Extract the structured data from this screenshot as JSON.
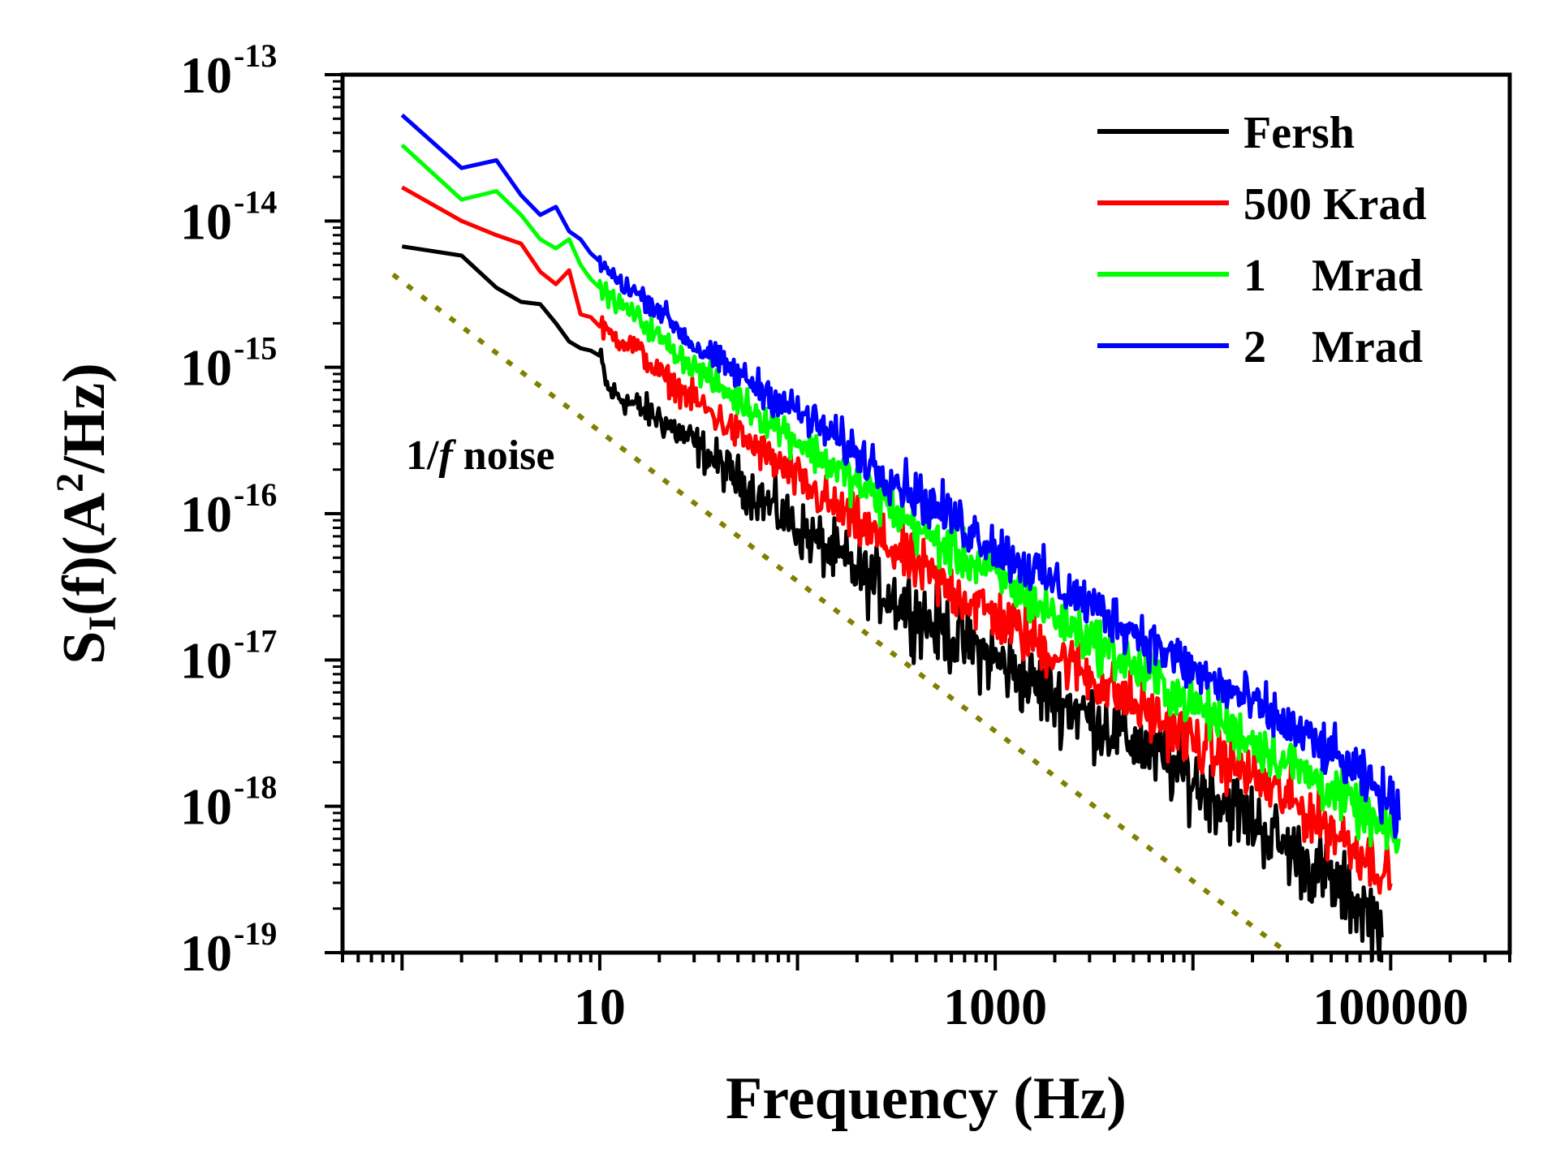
{
  "chart_data": {
    "type": "line",
    "title": "",
    "xlabel": "Frequency (Hz)",
    "ylabel": {
      "base": "S",
      "subscript": "I",
      "rest": "(f)(A",
      "superscript": "2",
      "end": "/Hz)"
    },
    "xscale": "log",
    "yscale": "log",
    "xlim": [
      0.5,
      400000
    ],
    "ylim": [
      1e-19,
      1e-13
    ],
    "x_ticks": [
      {
        "value": 10,
        "label": "10"
      },
      {
        "value": 1000,
        "label": "1000"
      },
      {
        "value": 100000,
        "label": "100000"
      }
    ],
    "y_ticks": [
      {
        "value": 1e-13,
        "base": "10",
        "exp": "-13"
      },
      {
        "value": 1e-14,
        "base": "10",
        "exp": "-14"
      },
      {
        "value": 1e-15,
        "base": "10",
        "exp": "-15"
      },
      {
        "value": 1e-16,
        "base": "10",
        "exp": "-16"
      },
      {
        "value": 1e-17,
        "base": "10",
        "exp": "-17"
      },
      {
        "value": 1e-18,
        "base": "10",
        "exp": "-18"
      },
      {
        "value": 1e-19,
        "base": "10",
        "exp": "-19"
      }
    ],
    "grid": false,
    "legend_position": "top-right",
    "legend": [
      {
        "label": "Fersh",
        "color": "#000000"
      },
      {
        "label": "500 Krad",
        "color": "#ff0000"
      },
      {
        "label": "1    Mrad",
        "color": "#00ff00"
      },
      {
        "label": "2    Mrad",
        "color": "#0000ff"
      }
    ],
    "series": [
      {
        "name": "Fersh",
        "color": "#000000",
        "x": [
          1,
          2,
          3,
          4,
          5,
          6,
          7,
          8,
          9,
          10,
          11,
          12,
          15,
          20,
          30,
          50,
          100,
          200,
          500,
          1000,
          2000,
          5000,
          10000,
          20000,
          50000,
          90000
        ],
        "values": [
          6.7e-15,
          5.8e-15,
          3.5e-15,
          2.8e-15,
          2.7e-15,
          2e-15,
          1.5e-15,
          1.35e-15,
          1.3e-15,
          1.2e-15,
          7e-16,
          6.5e-16,
          5.5e-16,
          4.5e-16,
          3e-16,
          1.7e-16,
          8e-17,
          4e-17,
          1.7e-17,
          1e-17,
          5.5e-18,
          2.8e-18,
          1.5e-18,
          8e-19,
          3e-19,
          1.6e-19
        ],
        "noise": 0.22
      },
      {
        "name": "500 Krad",
        "color": "#ff0000",
        "x": [
          1,
          2,
          3,
          4,
          5,
          6,
          7,
          8,
          9,
          10,
          12,
          15,
          20,
          30,
          50,
          100,
          200,
          500,
          1000,
          2000,
          5000,
          10000,
          20000,
          50000,
          90000,
          100000
        ],
        "values": [
          1.7e-14,
          1e-14,
          8e-15,
          7e-15,
          4.5e-15,
          3.7e-15,
          4.6e-15,
          2.3e-15,
          2.2e-15,
          1.9e-15,
          1.6e-15,
          1.4e-15,
          9e-16,
          6e-16,
          3.5e-16,
          1.7e-16,
          8.5e-17,
          3.5e-17,
          2e-17,
          1.1e-17,
          5e-18,
          2.8e-18,
          1.6e-18,
          7e-19,
          3.8e-19,
          3.3e-19
        ],
        "noise": 0.17
      },
      {
        "name": "1 Mrad",
        "color": "#00ff00",
        "x": [
          1,
          2,
          3,
          4,
          5,
          6,
          7,
          8,
          9,
          10,
          12,
          15,
          20,
          30,
          50,
          100,
          200,
          500,
          1000,
          2000,
          5000,
          10000,
          20000,
          50000,
          90000,
          110000
        ],
        "values": [
          3.3e-14,
          1.4e-14,
          1.6e-14,
          1.1e-14,
          7.5e-15,
          6.5e-15,
          7.5e-15,
          5e-15,
          4e-15,
          3.5e-15,
          2.8e-15,
          2.3e-15,
          1.6e-15,
          1e-15,
          6e-16,
          3.2e-16,
          1.6e-16,
          6.5e-17,
          3.8e-17,
          2e-17,
          9e-18,
          5e-18,
          2.8e-18,
          1.3e-18,
          7e-19,
          5.5e-19
        ],
        "noise": 0.15
      },
      {
        "name": "2 Mrad",
        "color": "#0000ff",
        "x": [
          1,
          2,
          3,
          4,
          5,
          6,
          7,
          8,
          9,
          10,
          12,
          15,
          20,
          30,
          50,
          100,
          200,
          500,
          1000,
          2000,
          5000,
          10000,
          20000,
          50000,
          90000,
          110000
        ],
        "values": [
          5.3e-14,
          2.3e-14,
          2.6e-14,
          1.5e-14,
          1.1e-14,
          1.25e-14,
          8.5e-15,
          7.5e-15,
          6e-15,
          5.3e-15,
          4e-15,
          3.3e-15,
          2.5e-15,
          1.4e-15,
          9e-16,
          5e-16,
          2.6e-16,
          1.1e-16,
          6e-17,
          3.3e-17,
          1.6e-17,
          8.5e-18,
          5e-18,
          2.3e-18,
          1.2e-18,
          9e-19
        ],
        "noise": 0.15
      }
    ],
    "reference_line": {
      "name": "1/f noise",
      "color": "#808000",
      "style": "dotted",
      "x": [
        0.9,
        30000
      ],
      "values": [
        4.3e-15,
        1e-19
      ]
    },
    "annotations": [
      {
        "text_prefix": "1/",
        "text_italic": "f",
        "text_suffix": " noise",
        "anchor_x": 1,
        "anchor_y": 2.2e-16
      }
    ]
  }
}
